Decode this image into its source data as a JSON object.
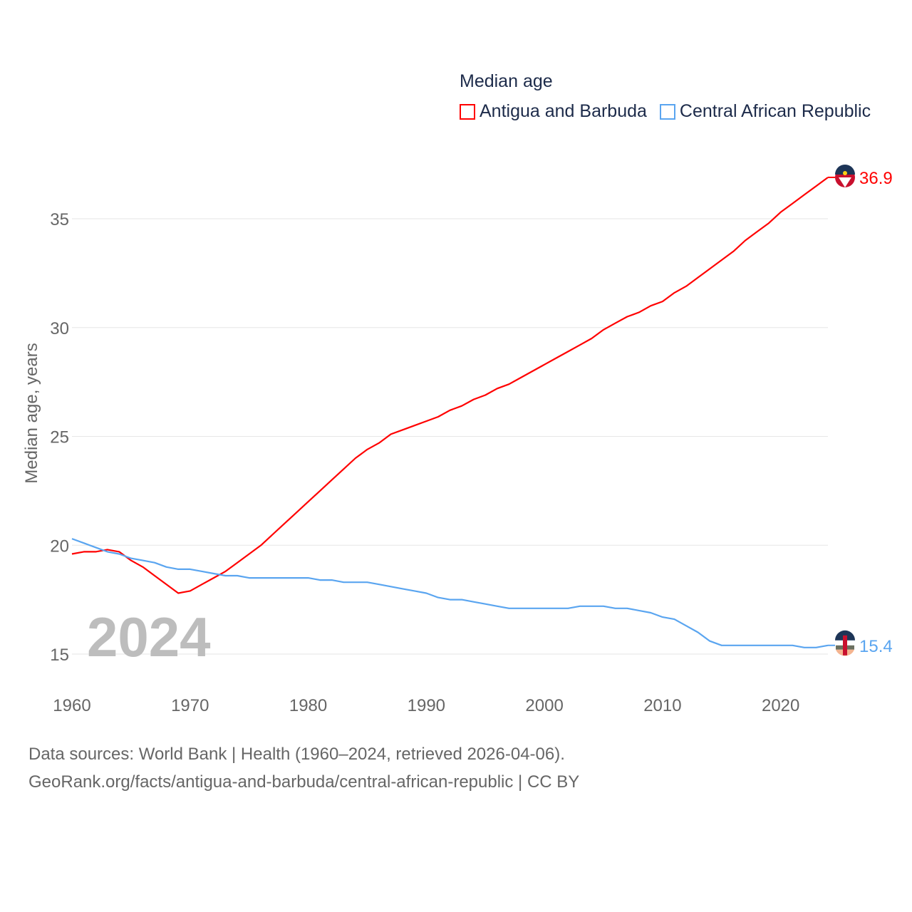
{
  "chart_data": {
    "type": "line",
    "title": "Median age",
    "ylabel": "Median age, years",
    "xlabel": "",
    "year_label": "2024",
    "ylim": [
      15,
      35
    ],
    "xlim": [
      1960,
      2024
    ],
    "yticks": [
      15,
      20,
      25,
      30,
      35
    ],
    "xticks": [
      1960,
      1970,
      1980,
      1990,
      2000,
      2010,
      2020
    ],
    "grid": true,
    "legend_placement": "top-right",
    "x": [
      1960,
      1961,
      1962,
      1963,
      1964,
      1965,
      1966,
      1967,
      1968,
      1969,
      1970,
      1971,
      1972,
      1973,
      1974,
      1975,
      1976,
      1977,
      1978,
      1979,
      1980,
      1981,
      1982,
      1983,
      1984,
      1985,
      1986,
      1987,
      1988,
      1989,
      1990,
      1991,
      1992,
      1993,
      1994,
      1995,
      1996,
      1997,
      1998,
      1999,
      2000,
      2001,
      2002,
      2003,
      2004,
      2005,
      2006,
      2007,
      2008,
      2009,
      2010,
      2011,
      2012,
      2013,
      2014,
      2015,
      2016,
      2017,
      2018,
      2019,
      2020,
      2021,
      2022,
      2023,
      2024
    ],
    "series": [
      {
        "name": "Antigua and Barbuda",
        "color": "#ff0000",
        "end_label": "36.9",
        "values": [
          19.6,
          19.7,
          19.7,
          19.8,
          19.7,
          19.3,
          19.0,
          18.6,
          18.2,
          17.8,
          17.9,
          18.2,
          18.5,
          18.8,
          19.2,
          19.6,
          20.0,
          20.5,
          21.0,
          21.5,
          22.0,
          22.5,
          23.0,
          23.5,
          24.0,
          24.4,
          24.7,
          25.1,
          25.3,
          25.5,
          25.7,
          25.9,
          26.2,
          26.4,
          26.7,
          26.9,
          27.2,
          27.4,
          27.7,
          28.0,
          28.3,
          28.6,
          28.9,
          29.2,
          29.5,
          29.9,
          30.2,
          30.5,
          30.7,
          31.0,
          31.2,
          31.6,
          31.9,
          32.3,
          32.7,
          33.1,
          33.5,
          34.0,
          34.4,
          34.8,
          35.3,
          35.7,
          36.1,
          36.5,
          36.9
        ]
      },
      {
        "name": "Central African Republic",
        "color": "#5aa5f0",
        "end_label": "15.4",
        "values": [
          20.3,
          20.1,
          19.9,
          19.7,
          19.6,
          19.4,
          19.3,
          19.2,
          19.0,
          18.9,
          18.9,
          18.8,
          18.7,
          18.6,
          18.6,
          18.5,
          18.5,
          18.5,
          18.5,
          18.5,
          18.5,
          18.4,
          18.4,
          18.3,
          18.3,
          18.3,
          18.2,
          18.1,
          18.0,
          17.9,
          17.8,
          17.6,
          17.5,
          17.5,
          17.4,
          17.3,
          17.2,
          17.1,
          17.1,
          17.1,
          17.1,
          17.1,
          17.1,
          17.2,
          17.2,
          17.2,
          17.1,
          17.1,
          17.0,
          16.9,
          16.7,
          16.6,
          16.3,
          16.0,
          15.6,
          15.4,
          15.4,
          15.4,
          15.4,
          15.4,
          15.4,
          15.4,
          15.3,
          15.3,
          15.4
        ]
      }
    ]
  },
  "footer": {
    "line1": "Data sources: World Bank | Health (1960–2024, retrieved 2026-04-06).",
    "line2": "GeoRank.org/facts/antigua-and-barbuda/central-african-republic | CC BY"
  }
}
